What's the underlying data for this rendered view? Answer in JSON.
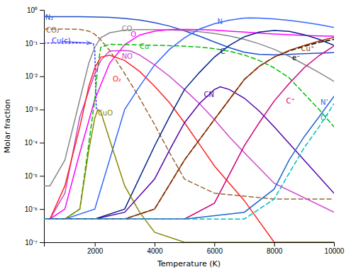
{
  "chart_data": {
    "type": "line",
    "xlabel": "Temperature (K)",
    "ylabel": "Molar fraction",
    "log": "y",
    "grid": false,
    "xlim": [
      300,
      10000
    ],
    "ylim": [
      1e-07,
      1.0
    ],
    "xticks": [
      2000,
      4000,
      6000,
      8000,
      10000
    ],
    "yticks": [
      {
        "value": 1e-07,
        "label": "10⁻⁷"
      },
      {
        "value": 1e-06,
        "label": "10⁻⁶"
      },
      {
        "value": 1e-05,
        "label": "10⁻⁵"
      },
      {
        "value": 0.0001,
        "label": "10⁻⁴"
      },
      {
        "value": 0.001,
        "label": "10⁻³"
      },
      {
        "value": 0.01,
        "label": "10⁻²"
      },
      {
        "value": 0.1,
        "label": "10⁻¹"
      },
      {
        "value": 1.0,
        "label": "10⁰"
      }
    ],
    "series": [
      {
        "color": "#1f4fcc",
        "line_style": "solid",
        "x": [
          300,
          500,
          1000,
          1500,
          2000,
          2500,
          3000,
          3500,
          4000,
          4500,
          5000,
          5500,
          6000,
          6500,
          7000,
          7500,
          8000,
          8500,
          9000,
          9500,
          10000
        ],
        "values": [
          0.63,
          0.63,
          0.63,
          0.625,
          0.615,
          0.595,
          0.555,
          0.495,
          0.415,
          0.325,
          0.235,
          0.162,
          0.108,
          0.073,
          0.053,
          0.046,
          0.044,
          0.046,
          0.048,
          0.05,
          0.052
        ]
      },
      {
        "color": "#996633",
        "line_style": "dashed",
        "x": [
          300,
          500,
          1000,
          1500,
          1800,
          2000,
          2200,
          2500,
          3000,
          3500,
          4000,
          4500,
          5000,
          6000,
          8000,
          10000
        ],
        "values": [
          0.265,
          0.265,
          0.265,
          0.26,
          0.23,
          0.185,
          0.125,
          0.06,
          0.012,
          0.0022,
          0.00035,
          5e-05,
          8e-06,
          3e-06,
          2e-06,
          2e-06
        ]
      },
      {
        "color": "#3333ff",
        "line_style": "dotted",
        "x": [
          300,
          500,
          1000,
          1500,
          1800,
          1950,
          2000,
          2050
        ],
        "values": [
          0.1,
          0.1,
          0.1,
          0.1,
          0.1,
          0.098,
          0.06,
          0.001
        ]
      },
      {
        "color": "#888888",
        "line_style": "solid",
        "x": [
          300,
          500,
          1000,
          1500,
          1800,
          2000,
          2200,
          2500,
          3000,
          3500,
          4000,
          4500,
          5000,
          5500,
          6000,
          6500,
          7000,
          7500,
          8000,
          8500,
          9000,
          9500,
          10000
        ],
        "values": [
          5e-06,
          5e-06,
          3e-05,
          0.002,
          0.025,
          0.075,
          0.145,
          0.205,
          0.245,
          0.255,
          0.255,
          0.25,
          0.24,
          0.22,
          0.195,
          0.165,
          0.13,
          0.095,
          0.065,
          0.04,
          0.023,
          0.013,
          0.007
        ]
      },
      {
        "color": "#ff00ff",
        "line_style": "solid",
        "x": [
          300,
          500,
          1000,
          1500,
          2000,
          2500,
          3000,
          3500,
          4000,
          4500,
          5000,
          5500,
          6000,
          6500,
          7000,
          7500,
          8000,
          8500,
          9000,
          9500,
          10000
        ],
        "values": [
          5e-07,
          5e-07,
          1e-06,
          5e-05,
          0.002,
          0.025,
          0.09,
          0.175,
          0.23,
          0.255,
          0.26,
          0.255,
          0.245,
          0.23,
          0.215,
          0.2,
          0.188,
          0.178,
          0.17,
          0.165,
          0.162
        ]
      },
      {
        "color": "#00bb00",
        "line_style": "dashed",
        "x": [
          300,
          1000,
          1500,
          2000,
          2100,
          2200,
          2500,
          3000,
          3500,
          4000,
          4500,
          5000,
          5500,
          6000,
          6500,
          7000,
          7500,
          8000,
          8500,
          9000,
          9500,
          10000
        ],
        "values": [
          5e-07,
          5e-07,
          1e-06,
          0.002,
          0.02,
          0.075,
          0.092,
          0.09,
          0.088,
          0.086,
          0.084,
          0.081,
          0.076,
          0.068,
          0.057,
          0.044,
          0.03,
          0.018,
          0.009,
          0.003,
          0.001,
          0.0003
        ]
      },
      {
        "color": "#3366ff",
        "line_style": "solid",
        "x": [
          300,
          1000,
          2000,
          3000,
          3500,
          4000,
          4500,
          5000,
          5500,
          6000,
          6500,
          7000,
          7200,
          7500,
          8000,
          8500,
          9000,
          9500,
          10000
        ],
        "values": [
          5e-07,
          5e-07,
          1e-06,
          0.001,
          0.005,
          0.022,
          0.065,
          0.145,
          0.265,
          0.385,
          0.49,
          0.565,
          0.575,
          0.57,
          0.535,
          0.485,
          0.425,
          0.36,
          0.295
        ]
      },
      {
        "color": "#cc44cc",
        "line_style": "solid",
        "x": [
          300,
          500,
          1000,
          1500,
          2000,
          2200,
          2500,
          3000,
          3200,
          3500,
          4000,
          4500,
          5000,
          5500,
          6000,
          6500,
          7000,
          8000,
          10000
        ],
        "values": [
          5e-07,
          5e-07,
          3e-06,
          0.0006,
          0.012,
          0.03,
          0.058,
          0.06,
          0.058,
          0.044,
          0.022,
          0.01,
          0.004,
          0.0015,
          0.0005,
          0.00015,
          5e-05,
          6e-06,
          8e-07
        ]
      },
      {
        "color": "#ff2222",
        "line_style": "solid",
        "x": [
          300,
          500,
          1000,
          1500,
          1800,
          2000,
          2200,
          2500,
          3000,
          3500,
          4000,
          4500,
          5000,
          5500,
          6000,
          7000,
          8000,
          10000
        ],
        "values": [
          5e-07,
          5e-07,
          5e-06,
          0.0003,
          0.005,
          0.018,
          0.038,
          0.043,
          0.03,
          0.014,
          0.005,
          0.0016,
          0.0004,
          9e-05,
          2e-05,
          1.8e-06,
          1e-07,
          1e-07
        ]
      },
      {
        "color": "#002288",
        "line_style": "solid",
        "x": [
          300,
          1000,
          2000,
          3000,
          4000,
          4500,
          5000,
          5500,
          6000,
          6500,
          7000,
          7500,
          8000,
          8500,
          9000,
          9500,
          10000
        ],
        "values": [
          5e-07,
          5e-07,
          5e-07,
          1e-06,
          8e-05,
          0.0006,
          0.004,
          0.013,
          0.038,
          0.085,
          0.155,
          0.215,
          0.24,
          0.225,
          0.18,
          0.13,
          0.085
        ]
      },
      {
        "color": "#888800",
        "line_style": "solid",
        "x": [
          300,
          1000,
          1500,
          1800,
          2000,
          2100,
          2200,
          2500,
          3000,
          3500,
          4000,
          5000,
          8000,
          10000
        ],
        "values": [
          5e-07,
          5e-07,
          1e-06,
          6e-05,
          0.00055,
          0.001,
          0.00085,
          0.00012,
          5e-06,
          8e-07,
          2e-07,
          1e-07,
          1e-07,
          1e-07
        ]
      },
      {
        "color": "#5500aa",
        "line_style": "solid",
        "x": [
          300,
          1000,
          2000,
          3000,
          4000,
          4500,
          5000,
          5500,
          6000,
          6200,
          6500,
          7000,
          7500,
          8000,
          9000,
          10000
        ],
        "values": [
          5e-07,
          5e-07,
          5e-07,
          8e-07,
          8e-06,
          6e-05,
          0.0004,
          0.0015,
          0.004,
          0.0048,
          0.004,
          0.0022,
          0.0009,
          0.0003,
          3e-05,
          3e-06
        ]
      },
      {
        "color": "#000000",
        "line_style": "dashed",
        "x": [
          300,
          1000,
          2000,
          3000,
          4000,
          5000,
          6000,
          6500,
          7000,
          7500,
          8000,
          8500,
          9000,
          9500,
          10000
        ],
        "values": [
          5e-07,
          5e-07,
          5e-07,
          5e-07,
          1e-06,
          3e-05,
          0.0005,
          0.002,
          0.008,
          0.02,
          0.038,
          0.058,
          0.08,
          0.105,
          0.13
        ]
      },
      {
        "color": "#993300",
        "line_style": "solid",
        "x": [
          300,
          1000,
          2000,
          3000,
          4000,
          5000,
          6000,
          6500,
          7000,
          7500,
          8000,
          8500,
          9000,
          9500,
          10000
        ],
        "values": [
          5e-07,
          5e-07,
          5e-07,
          5e-07,
          1e-06,
          3e-05,
          0.0005,
          0.002,
          0.008,
          0.02,
          0.038,
          0.06,
          0.085,
          0.115,
          0.15
        ]
      },
      {
        "color": "#cc0077",
        "line_style": "solid",
        "x": [
          300,
          1000,
          3000,
          5000,
          6000,
          7000,
          7500,
          8000,
          8500,
          9000,
          9500,
          10000
        ],
        "values": [
          5e-07,
          5e-07,
          5e-07,
          5e-07,
          1.5e-06,
          8e-05,
          0.0004,
          0.0018,
          0.006,
          0.018,
          0.042,
          0.082
        ]
      },
      {
        "color": "#2266cc",
        "line_style": "solid",
        "x": [
          300,
          1000,
          3000,
          5000,
          7000,
          8000,
          8500,
          9000,
          9500,
          10000
        ],
        "values": [
          5e-07,
          5e-07,
          5e-07,
          5e-07,
          8e-07,
          4e-06,
          3e-05,
          0.00015,
          0.0006,
          0.0025
        ]
      },
      {
        "color": "#00bbbb",
        "line_style": "dashed",
        "x": [
          300,
          1000,
          3000,
          5000,
          7000,
          8000,
          8500,
          9000,
          9500,
          10000
        ],
        "values": [
          5e-07,
          5e-07,
          5e-07,
          5e-07,
          5e-07,
          2e-06,
          1.2e-05,
          7e-05,
          0.0003,
          0.0015
        ]
      }
    ],
    "annotations": [
      {
        "text": "N₂",
        "x": 340,
        "y": 0.58,
        "color": "#1f4fcc"
      },
      {
        "text": "CO₂",
        "x": 370,
        "y": 0.245,
        "color": "#996633"
      },
      {
        "text": "Cu(c)",
        "x": 560,
        "y": 0.115,
        "color": "#3333ff"
      },
      {
        "text": "CO",
        "x": 2900,
        "y": 0.265,
        "color": "#888888"
      },
      {
        "text": "O",
        "x": 3200,
        "y": 0.175,
        "color": "#ff00ff"
      },
      {
        "text": "Cu",
        "x": 3500,
        "y": 0.079,
        "color": "#00bb00"
      },
      {
        "text": "N",
        "x": 6100,
        "y": 0.44,
        "color": "#3366ff"
      },
      {
        "text": "NO",
        "x": 2900,
        "y": 0.04,
        "color": "#cc44cc"
      },
      {
        "text": "O₂",
        "x": 2600,
        "y": 0.008,
        "color": "#ff2222"
      },
      {
        "text": "C",
        "x": 6200,
        "y": 0.055,
        "color": "#002288"
      },
      {
        "text": "CuO",
        "x": 2100,
        "y": 0.00075,
        "color": "#888800"
      },
      {
        "text": "CN",
        "x": 5650,
        "y": 0.0028,
        "color": "#5500aa"
      },
      {
        "text": "e⁻",
        "x": 8600,
        "y": 0.036,
        "color": "#000000"
      },
      {
        "text": "Cu⁺",
        "x": 8900,
        "y": 0.068,
        "color": "#993300"
      },
      {
        "text": "C⁺",
        "x": 8400,
        "y": 0.0018,
        "color": "#cc0077"
      },
      {
        "text": "N’",
        "x": 9550,
        "y": 0.0016,
        "color": "#2266cc"
      },
      {
        "text": "O’",
        "x": 9550,
        "y": 0.00055,
        "color": "#00bbbb"
      }
    ],
    "arrows": [
      {
        "x_start": 900,
        "y_start": 0.113,
        "x_end": 1870,
        "y_end": 0.1,
        "color": "#3333ff"
      }
    ]
  }
}
